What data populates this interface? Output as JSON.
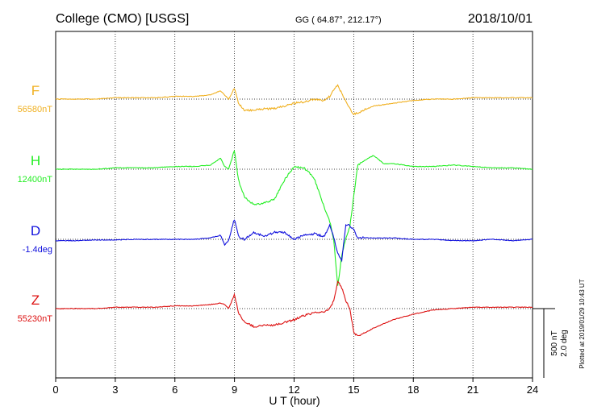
{
  "header": {
    "station": "College (CMO)  [USGS]",
    "coords": "GG ( 64.87°, 212.17°)",
    "date": "2018/10/01"
  },
  "plotted_note": "Plotted at 2019/01/29 10:43 UT",
  "scale_label_nt": "500 nT",
  "scale_label_deg": "2.0 deg",
  "chart_data": {
    "type": "line",
    "xlabel": "U T (hour)",
    "xlim": [
      0,
      24
    ],
    "xticks": [
      0,
      3,
      6,
      9,
      12,
      15,
      18,
      21,
      24
    ],
    "grid": true,
    "scale_bar": "500 nT / 2.0 deg",
    "series": [
      {
        "name": "F",
        "baseline_label": "56580nT",
        "baseline": 56580,
        "unit": "nT",
        "color": "#f0b020",
        "x": [
          0,
          1,
          2,
          3,
          4,
          5,
          6,
          7,
          7.8,
          8.3,
          8.5,
          8.7,
          9,
          9.2,
          9.5,
          10,
          10.5,
          11,
          11.5,
          12,
          12.5,
          13,
          13.5,
          13.8,
          14,
          14.2,
          14.4,
          14.6,
          14.8,
          15,
          15.2,
          15.5,
          16,
          17,
          18,
          19,
          20,
          21,
          22,
          23,
          24
        ],
        "y": [
          0,
          0,
          0,
          10,
          10,
          10,
          20,
          20,
          30,
          60,
          30,
          0,
          80,
          -30,
          -80,
          -80,
          -70,
          -70,
          -50,
          -30,
          -20,
          0,
          -10,
          20,
          70,
          100,
          40,
          -20,
          -70,
          -110,
          -100,
          -80,
          -50,
          -30,
          -10,
          0,
          0,
          10,
          10,
          10,
          10
        ]
      },
      {
        "name": "H",
        "baseline_label": "12400nT",
        "baseline": 12400,
        "unit": "nT",
        "color": "#22ee22",
        "x": [
          0,
          1,
          2,
          3,
          4,
          5,
          6,
          7,
          7.8,
          8.3,
          8.5,
          8.7,
          9,
          9.2,
          9.5,
          10,
          10.5,
          11,
          11.5,
          12,
          12.5,
          13,
          13.5,
          13.8,
          14,
          14.2,
          14.4,
          14.6,
          14.8,
          15,
          15.2,
          15.5,
          16,
          16.5,
          17,
          18,
          19,
          20,
          21,
          22,
          23,
          24
        ],
        "y": [
          0,
          0,
          0,
          10,
          10,
          10,
          20,
          20,
          30,
          80,
          20,
          0,
          140,
          -80,
          -200,
          -260,
          -240,
          -220,
          -80,
          20,
          10,
          -60,
          -270,
          -380,
          -520,
          -840,
          -620,
          -500,
          -420,
          -200,
          30,
          60,
          100,
          40,
          40,
          20,
          20,
          30,
          20,
          10,
          10,
          0
        ]
      },
      {
        "name": "D",
        "baseline_label": "-1.4deg",
        "baseline": -1.4,
        "unit": "deg",
        "color": "#1111dd",
        "x": [
          0,
          1,
          2,
          3,
          4,
          5,
          6,
          7,
          7.8,
          8.3,
          8.5,
          8.7,
          9,
          9.2,
          9.5,
          10,
          10.5,
          11,
          11.5,
          12,
          12.5,
          13,
          13.5,
          13.8,
          14,
          14.2,
          14.4,
          14.6,
          14.8,
          15,
          15.2,
          15.5,
          16,
          17,
          18,
          19,
          20,
          21,
          22,
          23,
          24
        ],
        "y": [
          -0.04,
          -0.04,
          -0.02,
          -0.02,
          0,
          0,
          0,
          0,
          0.04,
          0.12,
          -0.16,
          -0.04,
          0.6,
          0.08,
          0,
          0.2,
          0.08,
          0.2,
          0.2,
          0,
          0.12,
          0.16,
          0.08,
          0.4,
          0.04,
          -0.4,
          -0.6,
          0.4,
          0.4,
          0.28,
          0.04,
          0.04,
          0.04,
          0.04,
          0,
          0,
          -0.04,
          -0.04,
          0,
          -0.04,
          0
        ]
      },
      {
        "name": "Z",
        "baseline_label": "55230nT",
        "baseline": 55230,
        "unit": "nT",
        "color": "#dd1111",
        "x": [
          0,
          1,
          2,
          3,
          4,
          5,
          6,
          7,
          7.8,
          8.3,
          8.5,
          8.7,
          9,
          9.2,
          9.5,
          10,
          10.5,
          11,
          11.5,
          12,
          12.5,
          13,
          13.5,
          13.8,
          14,
          14.2,
          14.4,
          14.6,
          14.8,
          15,
          15.2,
          15.5,
          16,
          17,
          18,
          19,
          20,
          21,
          22,
          23,
          24
        ],
        "y": [
          0,
          0,
          0,
          10,
          10,
          10,
          20,
          20,
          30,
          40,
          30,
          0,
          100,
          -30,
          -100,
          -130,
          -120,
          -120,
          -100,
          -80,
          -50,
          -30,
          -20,
          0,
          60,
          200,
          150,
          60,
          0,
          -170,
          -200,
          -180,
          -140,
          -80,
          -40,
          -10,
          0,
          10,
          10,
          10,
          10
        ]
      }
    ]
  }
}
